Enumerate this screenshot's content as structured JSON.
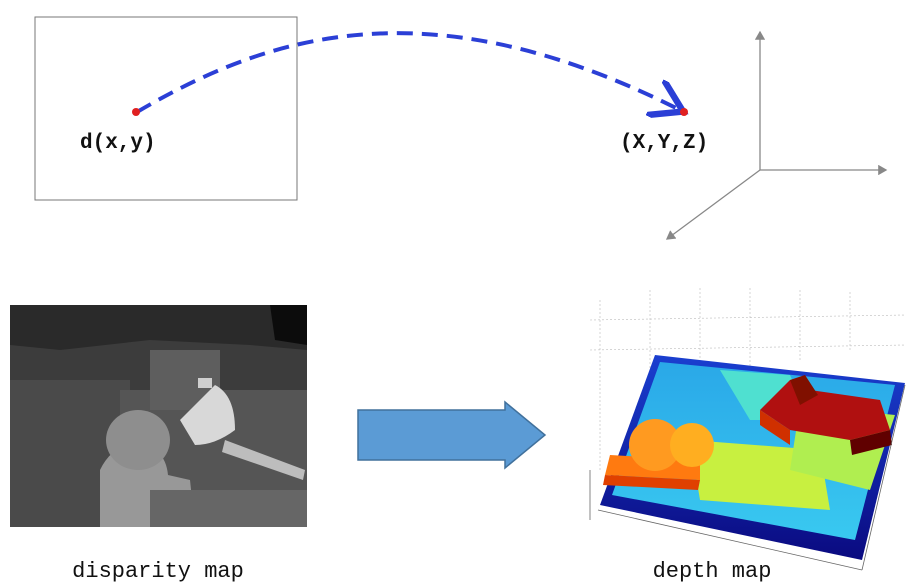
{
  "projection": {
    "source_label": "d(x,y)",
    "target_label": "(X,Y,Z)"
  },
  "images": [
    {
      "caption": "disparity map"
    },
    {
      "caption": "depth map"
    }
  ]
}
